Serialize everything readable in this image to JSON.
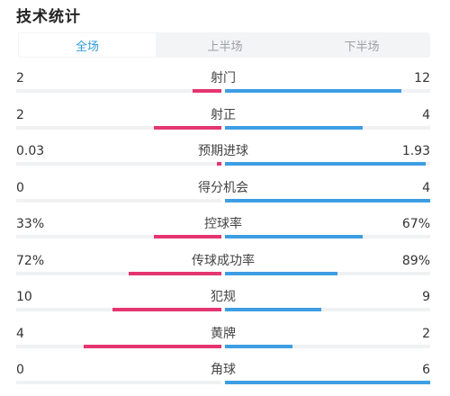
{
  "header": {
    "title": "技术统计"
  },
  "tabs": [
    {
      "label": "全场",
      "active": true
    },
    {
      "label": "上半场",
      "active": false
    },
    {
      "label": "下半场",
      "active": false
    }
  ],
  "colors": {
    "home": "#e53570",
    "away": "#3d9ee3",
    "accent": "#2e9bdc"
  },
  "stats": [
    {
      "label": "射门",
      "home": "2",
      "away": "12",
      "home_ratio": 0.14,
      "away_ratio": 0.86
    },
    {
      "label": "射正",
      "home": "2",
      "away": "4",
      "home_ratio": 0.33,
      "away_ratio": 0.67
    },
    {
      "label": "预期进球",
      "home": "0.03",
      "away": "1.93",
      "home_ratio": 0.02,
      "away_ratio": 0.98
    },
    {
      "label": "得分机会",
      "home": "0",
      "away": "4",
      "home_ratio": 0.0,
      "away_ratio": 1.0
    },
    {
      "label": "控球率",
      "home": "33%",
      "away": "67%",
      "home_ratio": 0.33,
      "away_ratio": 0.67
    },
    {
      "label": "传球成功率",
      "home": "72%",
      "away": "89%",
      "home_ratio": 0.45,
      "away_ratio": 0.55
    },
    {
      "label": "犯规",
      "home": "10",
      "away": "9",
      "home_ratio": 0.53,
      "away_ratio": 0.47
    },
    {
      "label": "黄牌",
      "home": "4",
      "away": "2",
      "home_ratio": 0.67,
      "away_ratio": 0.33
    },
    {
      "label": "角球",
      "home": "0",
      "away": "6",
      "home_ratio": 0.0,
      "away_ratio": 1.0
    }
  ]
}
